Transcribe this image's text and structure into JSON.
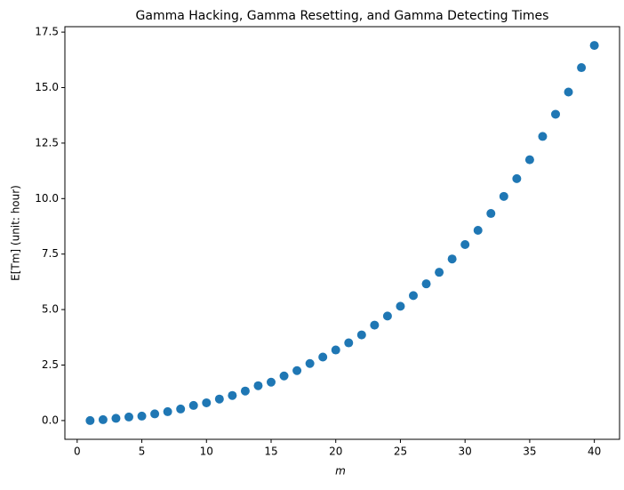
{
  "chart_data": {
    "type": "scatter",
    "title": "Gamma Hacking, Gamma Resetting, and Gamma Detecting Times",
    "xlabel": "m",
    "ylabel": "E[Tm] (unit: hour)",
    "color": "#1f77b4",
    "x": [
      1,
      2,
      3,
      4,
      5,
      6,
      7,
      8,
      9,
      10,
      11,
      12,
      13,
      14,
      15,
      16,
      17,
      18,
      19,
      20,
      21,
      22,
      23,
      24,
      25,
      26,
      27,
      28,
      29,
      30,
      31,
      32,
      33,
      34,
      35,
      36,
      37,
      38,
      39,
      40
    ],
    "values": [
      0.0,
      0.04,
      0.1,
      0.16,
      0.2,
      0.3,
      0.4,
      0.52,
      0.68,
      0.8,
      0.97,
      1.13,
      1.33,
      1.57,
      1.73,
      2.01,
      2.25,
      2.57,
      2.86,
      3.18,
      3.5,
      3.86,
      4.3,
      4.71,
      5.15,
      5.63,
      6.16,
      6.68,
      7.28,
      7.93,
      8.57,
      9.33,
      10.1,
      10.9,
      11.75,
      12.8,
      13.8,
      14.8,
      15.9,
      16.9
    ],
    "xlim": [
      -0.95,
      41.95
    ],
    "xticks": [
      0,
      5,
      10,
      15,
      20,
      25,
      30,
      35,
      40
    ],
    "ylim": [
      -0.845,
      17.745
    ],
    "yticks": [
      {
        "value": 0,
        "label": "0.0"
      },
      {
        "value": 2.5,
        "label": "2.5"
      },
      {
        "value": 5,
        "label": "5.0"
      },
      {
        "value": 7.5,
        "label": "7.5"
      },
      {
        "value": 10,
        "label": "10.0"
      },
      {
        "value": 12.5,
        "label": "12.5"
      },
      {
        "value": 15,
        "label": "15.0"
      },
      {
        "value": 17.5,
        "label": "17.5"
      }
    ],
    "grid": false
  }
}
